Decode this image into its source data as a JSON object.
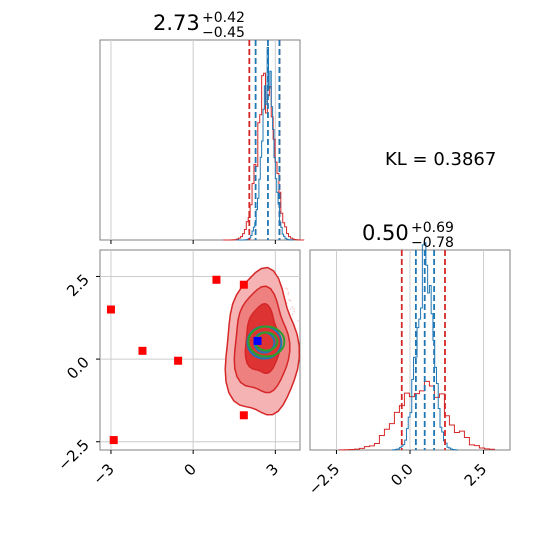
{
  "kl_text": "KL = 0.3867",
  "colors": {
    "red": "#d62728",
    "blue": "#1f77b4",
    "green": "#2ca02c",
    "marker_red": "#ff0000",
    "marker_blue": "#0000ff",
    "fill_red": "#f08080",
    "grid": "#cccccc"
  },
  "chart_data": [
    {
      "type": "histogram",
      "panel": "top-left",
      "title": {
        "median": "2.73",
        "plus": "+0.42",
        "minus": "−0.45"
      },
      "xlim": [
        -3.4,
        3.9
      ],
      "x_tick_values": [
        -3,
        0,
        3
      ],
      "series": [
        {
          "name": "",
          "color": "#d62728",
          "quantile_lines": [
            2.05,
            3.15
          ]
        },
        {
          "name": "",
          "color": "#1f77b4",
          "quantile_lines": [
            2.28,
            2.73,
            3.15
          ]
        }
      ],
      "vertical_grid": [
        -3,
        0,
        3
      ]
    },
    {
      "type": "scatter",
      "panel": "bottom-left",
      "xlim": [
        -3.4,
        3.9
      ],
      "ylim": [
        -2.75,
        3.3
      ],
      "x_tick_labels": [
        "−3",
        "0",
        "3"
      ],
      "x_tick_values": [
        -3,
        0,
        3
      ],
      "y_tick_labels": [
        "2.5",
        "0.0",
        "−2.5"
      ],
      "y_tick_values": [
        2.5,
        0.0,
        -2.5
      ],
      "red_markers": [
        [
          -3.0,
          1.5
        ],
        [
          -2.9,
          -2.45
        ],
        [
          -1.85,
          0.25
        ],
        [
          -0.55,
          -0.05
        ],
        [
          0.85,
          2.4
        ],
        [
          1.85,
          2.25
        ],
        [
          1.85,
          -1.7
        ]
      ],
      "blue_marker": [
        2.35,
        0.55
      ],
      "contour_center": [
        2.6,
        0.5
      ]
    },
    {
      "type": "histogram",
      "panel": "bottom-right",
      "title": {
        "median": "0.50",
        "plus": "+0.69",
        "minus": "−0.78"
      },
      "xlim": [
        -3.4,
        3.4
      ],
      "x_tick_labels": [
        "−2.5",
        "0.0",
        "2.5"
      ],
      "x_tick_values": [
        -2.5,
        0.0,
        2.5
      ],
      "series": [
        {
          "name": "",
          "color": "#d62728",
          "quantile_lines": [
            -0.28,
            1.19
          ]
        },
        {
          "name": "",
          "color": "#1f77b4",
          "quantile_lines": [
            0.2,
            0.5,
            0.82
          ]
        }
      ],
      "vertical_grid": [
        -2.5,
        0.0,
        2.5
      ]
    }
  ]
}
